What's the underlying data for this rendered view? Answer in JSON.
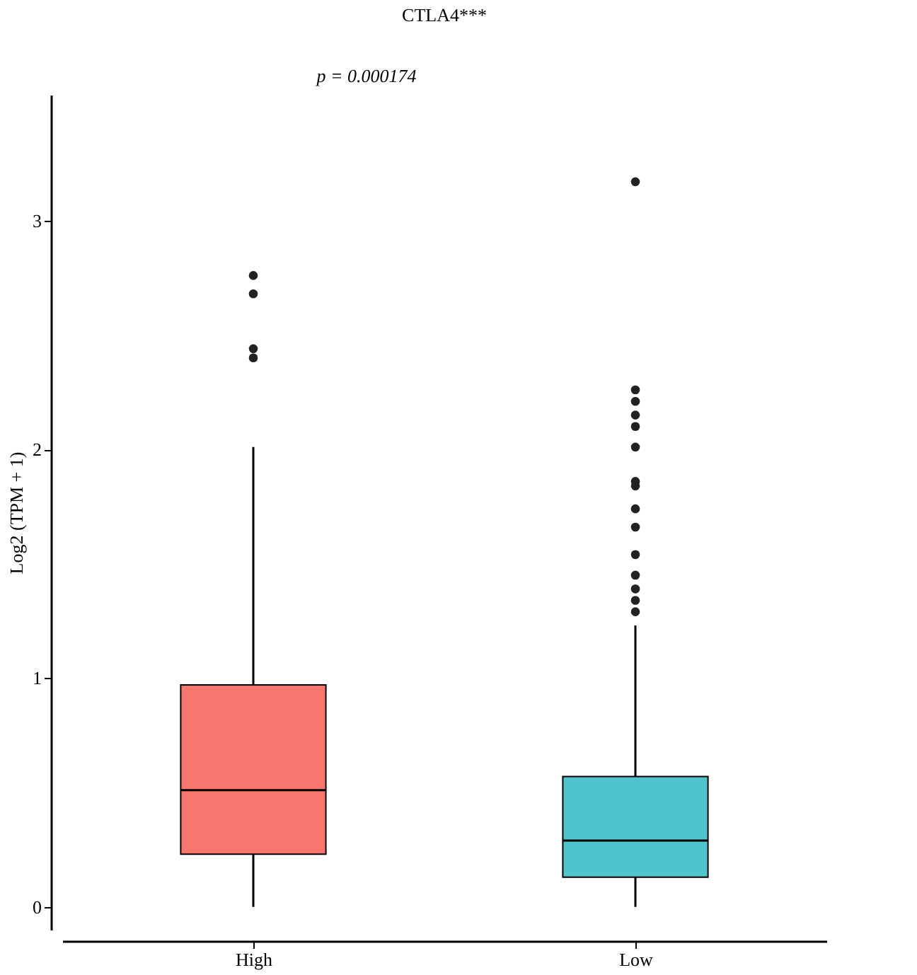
{
  "chart_data": {
    "type": "box",
    "title": "CTLA4***",
    "ylabel": "Log2 (TPM + 1)",
    "categories": [
      "High",
      "Low"
    ],
    "colors": [
      "#f8766d",
      "#4fc4cc"
    ],
    "boxes": [
      {
        "low": 0,
        "q1": 0.23,
        "median": 0.51,
        "q3": 0.97,
        "high": 2.01,
        "outliers": [
          2.4,
          2.44,
          2.68,
          2.76
        ]
      },
      {
        "low": 0,
        "q1": 0.13,
        "median": 0.29,
        "q3": 0.57,
        "high": 1.23,
        "outliers": [
          1.29,
          1.34,
          1.39,
          1.45,
          1.54,
          1.66,
          1.74,
          1.84,
          1.86,
          2.01,
          2.1,
          2.15,
          2.21,
          2.26,
          3.17
        ]
      }
    ],
    "ylim": [
      -0.1,
      3.55
    ],
    "yticks": [
      0,
      1,
      2,
      3
    ],
    "grid": false,
    "annotations": [
      "p = 0.000174"
    ]
  }
}
